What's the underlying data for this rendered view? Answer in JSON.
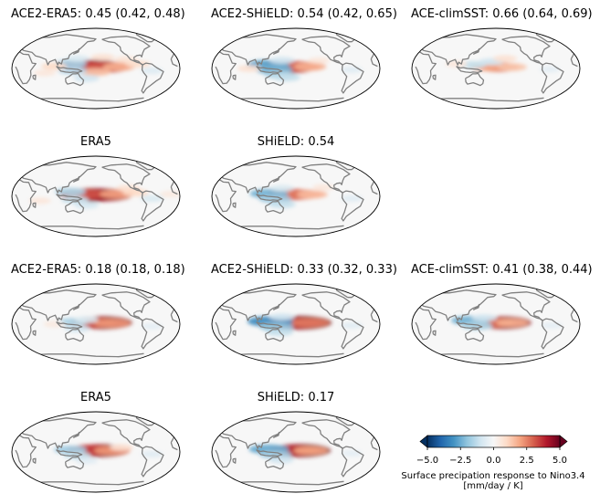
{
  "chart_data": {
    "type": "heatmap",
    "projection": "robinson-global-map",
    "panels": [
      {
        "title": "ACE2-ERA5: 0.45 (0.42, 0.48)",
        "model": "ACE2-ERA5",
        "score": 0.45,
        "ci": [
          0.42,
          0.48
        ],
        "row": 1,
        "col": 1,
        "anomalies": [
          {
            "lon": 175,
            "lat": 4,
            "value": 4.8
          },
          {
            "lon": 150,
            "lat": 5,
            "value": 3.6
          },
          {
            "lon": 205,
            "lat": 3,
            "value": 3.2
          },
          {
            "lon": 230,
            "lat": 4,
            "value": 1.8
          },
          {
            "lon": 180,
            "lat": -8,
            "value": 1.5
          },
          {
            "lon": 125,
            "lat": 10,
            "value": -1.8
          },
          {
            "lon": 130,
            "lat": -5,
            "value": -1.4
          },
          {
            "lon": 160,
            "lat": -22,
            "value": -1.0
          },
          {
            "lon": 195,
            "lat": 25,
            "value": 0.8
          },
          {
            "lon": 245,
            "lat": 20,
            "value": 0.7
          },
          {
            "lon": 300,
            "lat": -5,
            "value": -0.7
          },
          {
            "lon": 90,
            "lat": 5,
            "value": 1.0
          },
          {
            "lon": 70,
            "lat": -10,
            "value": 0.6
          },
          {
            "lon": 140,
            "lat": 22,
            "value": -0.8
          },
          {
            "lon": 270,
            "lat": 10,
            "value": 0.9
          }
        ]
      },
      {
        "title": "ACE2-SHiELD: 0.54 (0.42, 0.65)",
        "model": "ACE2-SHiELD",
        "score": 0.54,
        "ci": [
          0.42,
          0.65
        ],
        "row": 1,
        "col": 2,
        "anomalies": [
          {
            "lon": 165,
            "lat": 3,
            "value": 4.2
          },
          {
            "lon": 185,
            "lat": 4,
            "value": 3.0
          },
          {
            "lon": 210,
            "lat": 4,
            "value": 1.8
          },
          {
            "lon": 120,
            "lat": 8,
            "value": -2.8
          },
          {
            "lon": 132,
            "lat": -2,
            "value": -2.4
          },
          {
            "lon": 145,
            "lat": -14,
            "value": -1.6
          },
          {
            "lon": 160,
            "lat": -20,
            "value": -1.2
          },
          {
            "lon": 150,
            "lat": 18,
            "value": -1.0
          },
          {
            "lon": 230,
            "lat": 18,
            "value": 0.6
          },
          {
            "lon": 300,
            "lat": -3,
            "value": -0.6
          },
          {
            "lon": 80,
            "lat": 0,
            "value": 0.8
          }
        ]
      },
      {
        "title": "ACE-climSST: 0.66 (0.64, 0.69)",
        "model": "ACE-climSST",
        "score": 0.66,
        "ci": [
          0.64,
          0.69
        ],
        "row": 1,
        "col": 3,
        "anomalies": [
          {
            "lon": 185,
            "lat": 3,
            "value": 2.6
          },
          {
            "lon": 160,
            "lat": 4,
            "value": 2.0
          },
          {
            "lon": 215,
            "lat": 3,
            "value": 1.4
          },
          {
            "lon": 130,
            "lat": 8,
            "value": -1.2
          },
          {
            "lon": 170,
            "lat": 15,
            "value": -1.0
          },
          {
            "lon": 200,
            "lat": 22,
            "value": 0.8
          },
          {
            "lon": 95,
            "lat": 10,
            "value": 0.6
          },
          {
            "lon": 295,
            "lat": -2,
            "value": -0.5
          }
        ]
      },
      {
        "title": "ERA5",
        "model": "ERA5",
        "row": 2,
        "col": 1,
        "anomalies": [
          {
            "lon": 175,
            "lat": 3,
            "value": 4.9
          },
          {
            "lon": 200,
            "lat": 3,
            "value": 4.2
          },
          {
            "lon": 150,
            "lat": 5,
            "value": 3.2
          },
          {
            "lon": 225,
            "lat": 5,
            "value": 2.0
          },
          {
            "lon": 125,
            "lat": 10,
            "value": -1.6
          },
          {
            "lon": 135,
            "lat": -8,
            "value": -1.2
          },
          {
            "lon": 160,
            "lat": -20,
            "value": -0.9
          },
          {
            "lon": 250,
            "lat": 18,
            "value": 0.8
          },
          {
            "lon": 300,
            "lat": -5,
            "value": -0.8
          },
          {
            "lon": 60,
            "lat": -10,
            "value": 0.6
          },
          {
            "lon": 265,
            "lat": 8,
            "value": 1.0
          },
          {
            "lon": 340,
            "lat": 5,
            "value": 0.5
          }
        ]
      },
      {
        "title": "SHiELD: 0.54",
        "model": "SHiELD",
        "score": 0.54,
        "row": 2,
        "col": 2,
        "anomalies": [
          {
            "lon": 170,
            "lat": 4,
            "value": 3.4
          },
          {
            "lon": 195,
            "lat": 4,
            "value": 2.6
          },
          {
            "lon": 215,
            "lat": 4,
            "value": 1.6
          },
          {
            "lon": 122,
            "lat": 6,
            "value": -2.4
          },
          {
            "lon": 135,
            "lat": -6,
            "value": -1.8
          },
          {
            "lon": 150,
            "lat": -18,
            "value": -1.2
          },
          {
            "lon": 150,
            "lat": 18,
            "value": -0.8
          },
          {
            "lon": 240,
            "lat": 20,
            "value": 0.6
          },
          {
            "lon": 300,
            "lat": -5,
            "value": -0.6
          }
        ]
      },
      {
        "title": "ACE2-ERA5: 0.18 (0.18, 0.18)",
        "model": "ACE2-ERA5",
        "score": 0.18,
        "ci": [
          0.18,
          0.18
        ],
        "row": 3,
        "col": 1,
        "anomalies": [
          {
            "lon": 195,
            "lat": 3,
            "value": 4.6
          },
          {
            "lon": 175,
            "lat": 3,
            "value": 3.2
          },
          {
            "lon": 215,
            "lat": 2,
            "value": 2.2
          },
          {
            "lon": 130,
            "lat": 5,
            "value": -1.6
          },
          {
            "lon": 140,
            "lat": -10,
            "value": -1.0
          },
          {
            "lon": 160,
            "lat": 10,
            "value": -0.8
          },
          {
            "lon": 300,
            "lat": -5,
            "value": -0.5
          },
          {
            "lon": 90,
            "lat": 0,
            "value": 0.5
          }
        ]
      },
      {
        "title": "ACE2-SHiELD: 0.33 (0.32, 0.33)",
        "model": "ACE2-SHiELD",
        "score": 0.33,
        "ci": [
          0.32,
          0.33
        ],
        "row": 3,
        "col": 2,
        "anomalies": [
          {
            "lon": 190,
            "lat": 3,
            "value": 5.0
          },
          {
            "lon": 175,
            "lat": 2,
            "value": 4.0
          },
          {
            "lon": 210,
            "lat": 3,
            "value": 2.6
          },
          {
            "lon": 125,
            "lat": 6,
            "value": -3.2
          },
          {
            "lon": 138,
            "lat": -6,
            "value": -2.0
          },
          {
            "lon": 145,
            "lat": -18,
            "value": -1.2
          },
          {
            "lon": 150,
            "lat": 16,
            "value": -1.0
          },
          {
            "lon": 300,
            "lat": -3,
            "value": -0.6
          }
        ]
      },
      {
        "title": "ACE-climSST: 0.41 (0.38, 0.44)",
        "model": "ACE-climSST",
        "score": 0.41,
        "ci": [
          0.38,
          0.44
        ],
        "row": 3,
        "col": 3,
        "anomalies": [
          {
            "lon": 195,
            "lat": 3,
            "value": 4.4
          },
          {
            "lon": 175,
            "lat": 3,
            "value": 2.8
          },
          {
            "lon": 215,
            "lat": 3,
            "value": 1.8
          },
          {
            "lon": 125,
            "lat": 8,
            "value": -2.4
          },
          {
            "lon": 140,
            "lat": -4,
            "value": -1.6
          },
          {
            "lon": 155,
            "lat": 14,
            "value": -1.0
          },
          {
            "lon": 300,
            "lat": -3,
            "value": -0.5
          }
        ]
      },
      {
        "title": "ERA5",
        "model": "ERA5",
        "row": 4,
        "col": 1,
        "anomalies": [
          {
            "lon": 190,
            "lat": 3,
            "value": 4.6
          },
          {
            "lon": 170,
            "lat": 4,
            "value": 3.4
          },
          {
            "lon": 215,
            "lat": 3,
            "value": 2.2
          },
          {
            "lon": 125,
            "lat": 5,
            "value": -1.8
          },
          {
            "lon": 140,
            "lat": -8,
            "value": -1.2
          },
          {
            "lon": 160,
            "lat": -20,
            "value": -0.6
          },
          {
            "lon": 300,
            "lat": -5,
            "value": -0.6
          },
          {
            "lon": 235,
            "lat": 10,
            "value": 0.8
          }
        ]
      },
      {
        "title": "SHiELD: 0.17",
        "model": "SHiELD",
        "score": 0.17,
        "row": 4,
        "col": 2,
        "anomalies": [
          {
            "lon": 190,
            "lat": 3,
            "value": 4.8
          },
          {
            "lon": 175,
            "lat": 3,
            "value": 3.6
          },
          {
            "lon": 212,
            "lat": 3,
            "value": 2.0
          },
          {
            "lon": 122,
            "lat": 6,
            "value": -2.6
          },
          {
            "lon": 136,
            "lat": -6,
            "value": -1.8
          },
          {
            "lon": 148,
            "lat": -18,
            "value": -1.0
          },
          {
            "lon": 300,
            "lat": -3,
            "value": -0.5
          }
        ]
      }
    ],
    "colorbar": {
      "cmap": "RdBu_r",
      "vmin": -5.0,
      "vmax": 5.0,
      "ticks": [
        "−5.0",
        "−2.5",
        "0.0",
        "2.5",
        "5.0"
      ],
      "tick_values": [
        -5.0,
        -2.5,
        0.0,
        2.5,
        5.0
      ],
      "extend": "both",
      "label_line1": "Surface precipation response to Nino3.4",
      "label_line2": "[mm/day / K]"
    }
  },
  "colors": {
    "coastline": "#808080",
    "ocean": "#f7f7f7",
    "neg_strong": "#053061",
    "neg_mid": "#4393c3",
    "neg_light": "#d1e5f0",
    "pos_light": "#fddbc7",
    "pos_mid": "#d6604d",
    "pos_strong": "#67001f"
  }
}
